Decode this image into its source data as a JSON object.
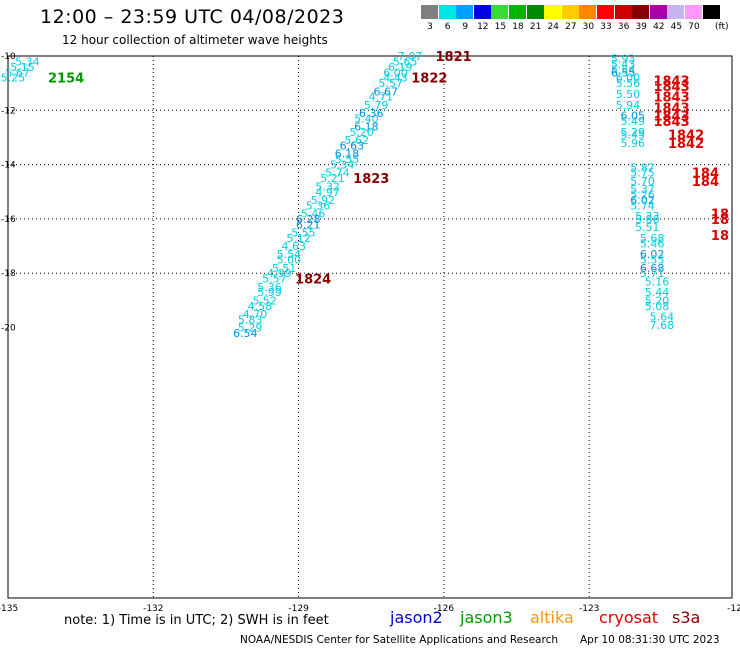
{
  "header": {
    "title": "12:00 – 23:59 UTC 04/08/2023",
    "subtitle": "12 hour collection of altimeter wave heights"
  },
  "colorbar": {
    "unit": "(ft)",
    "bins": [
      {
        "label": "3",
        "color": "#808080"
      },
      {
        "label": "6",
        "color": "#00e6e6"
      },
      {
        "label": "9",
        "color": "#00a0ff"
      },
      {
        "label": "12",
        "color": "#0000e6"
      },
      {
        "label": "15",
        "color": "#33dd33"
      },
      {
        "label": "18",
        "color": "#00b400"
      },
      {
        "label": "21",
        "color": "#008800"
      },
      {
        "label": "24",
        "color": "#ffff00"
      },
      {
        "label": "27",
        "color": "#ffcc00"
      },
      {
        "label": "30",
        "color": "#ff8800"
      },
      {
        "label": "33",
        "color": "#ff0000"
      },
      {
        "label": "36",
        "color": "#cc0000"
      },
      {
        "label": "39",
        "color": "#880000"
      },
      {
        "label": "42",
        "color": "#aa00aa"
      },
      {
        "label": "45",
        "color": "#c8b4f0"
      },
      {
        "label": "70",
        "color": "#ff99ff"
      },
      {
        "label": "",
        "color": "#000000"
      }
    ]
  },
  "axes": {
    "lon_ticks": [
      "-135",
      "-132",
      "-129",
      "-126",
      "-123",
      "-12"
    ],
    "lat_ticks": [
      "-10",
      "-12",
      "-14",
      "-16",
      "-18",
      "-20"
    ]
  },
  "tracks": [
    {
      "id": "left-edge",
      "points": [
        {
          "swh": "5.34",
          "lon": -134.6,
          "lat": -10.2,
          "color": "#00cfe0"
        },
        {
          "swh": "5.15",
          "lon": -134.7,
          "lat": -10.4,
          "color": "#00cfe0"
        },
        {
          "swh": "5.67",
          "lon": -134.8,
          "lat": -10.6,
          "color": "#00cfe0"
        },
        {
          "swh": "5.25",
          "lon": -134.9,
          "lat": -10.8,
          "color": "#00cfe0"
        }
      ],
      "times": [
        {
          "time": "2154",
          "lon": -133.8,
          "lat": -10.8,
          "color": "#009900"
        }
      ]
    },
    {
      "id": "center",
      "points": [
        {
          "swh": "7.07",
          "lon": -126.7,
          "lat": -10.0,
          "color": "#00cfe0"
        },
        {
          "swh": "5.65",
          "lon": -126.8,
          "lat": -10.2,
          "color": "#00cfe0"
        },
        {
          "swh": "6.19",
          "lon": -126.9,
          "lat": -10.4,
          "color": "#00cfe0"
        },
        {
          "swh": "6.00",
          "lon": -127.0,
          "lat": -10.6,
          "color": "#00cfe0"
        },
        {
          "swh": "4.43",
          "lon": -127.0,
          "lat": -10.8,
          "color": "#00cfe0"
        },
        {
          "swh": "5.57",
          "lon": -127.1,
          "lat": -11.0,
          "color": "#00cfe0"
        },
        {
          "swh": "6.67",
          "lon": -127.2,
          "lat": -11.3,
          "color": "#0090e0"
        },
        {
          "swh": "4.71",
          "lon": -127.3,
          "lat": -11.5,
          "color": "#00cfe0"
        },
        {
          "swh": "5.79",
          "lon": -127.4,
          "lat": -11.8,
          "color": "#00cfe0"
        },
        {
          "swh": "6.36",
          "lon": -127.5,
          "lat": -12.1,
          "color": "#0090e0"
        },
        {
          "swh": "5.40",
          "lon": -127.6,
          "lat": -12.3,
          "color": "#00cfe0"
        },
        {
          "swh": "6.18",
          "lon": -127.6,
          "lat": -12.6,
          "color": "#0090e0"
        },
        {
          "swh": "5.20",
          "lon": -127.7,
          "lat": -12.8,
          "color": "#00cfe0"
        },
        {
          "swh": "5.62",
          "lon": -127.8,
          "lat": -13.1,
          "color": "#00cfe0"
        },
        {
          "swh": "6.63",
          "lon": -127.9,
          "lat": -13.3,
          "color": "#0090e0"
        },
        {
          "swh": "6.18",
          "lon": -128.0,
          "lat": -13.6,
          "color": "#0090e0"
        },
        {
          "swh": "5.55",
          "lon": -128.0,
          "lat": -13.8,
          "color": "#00cfe0"
        },
        {
          "swh": "5.34",
          "lon": -128.1,
          "lat": -14.0,
          "color": "#00cfe0"
        },
        {
          "swh": "5.74",
          "lon": -128.2,
          "lat": -14.3,
          "color": "#00cfe0"
        },
        {
          "swh": "5.21",
          "lon": -128.3,
          "lat": -14.5,
          "color": "#00cfe0"
        },
        {
          "swh": "5.32",
          "lon": -128.4,
          "lat": -14.8,
          "color": "#00cfe0"
        },
        {
          "swh": "4.97",
          "lon": -128.4,
          "lat": -15.0,
          "color": "#00cfe0"
        },
        {
          "swh": "5.92",
          "lon": -128.5,
          "lat": -15.3,
          "color": "#00cfe0"
        },
        {
          "swh": "5.36",
          "lon": -128.6,
          "lat": -15.5,
          "color": "#00cfe0"
        },
        {
          "swh": "5.46",
          "lon": -128.7,
          "lat": -15.8,
          "color": "#00cfe0"
        },
        {
          "swh": "6.28",
          "lon": -128.8,
          "lat": -16.0,
          "color": "#0090e0"
        },
        {
          "swh": "6.21",
          "lon": -128.8,
          "lat": -16.2,
          "color": "#0090e0"
        },
        {
          "swh": "5.55",
          "lon": -128.9,
          "lat": -16.5,
          "color": "#00cfe0"
        },
        {
          "swh": "5.12",
          "lon": -129.0,
          "lat": -16.7,
          "color": "#00cfe0"
        },
        {
          "swh": "4.63",
          "lon": -129.1,
          "lat": -17.0,
          "color": "#00cfe0"
        },
        {
          "swh": "5.54",
          "lon": -129.2,
          "lat": -17.3,
          "color": "#00cfe0"
        },
        {
          "swh": "5.00",
          "lon": -129.2,
          "lat": -17.5,
          "color": "#00cfe0"
        },
        {
          "swh": "5.51",
          "lon": -129.3,
          "lat": -17.8,
          "color": "#00cfe0"
        },
        {
          "swh": "4.99",
          "lon": -129.4,
          "lat": -18.0,
          "color": "#00cfe0"
        },
        {
          "swh": "5.57",
          "lon": -129.5,
          "lat": -18.2,
          "color": "#00cfe0"
        },
        {
          "swh": "5.36",
          "lon": -129.6,
          "lat": -18.5,
          "color": "#00cfe0"
        },
        {
          "swh": "5.99",
          "lon": -129.6,
          "lat": -18.7,
          "color": "#00cfe0"
        },
        {
          "swh": "5.52",
          "lon": -129.7,
          "lat": -19.0,
          "color": "#00cfe0"
        },
        {
          "swh": "4.58",
          "lon": -129.8,
          "lat": -19.2,
          "color": "#00cfe0"
        },
        {
          "swh": "4.70",
          "lon": -129.9,
          "lat": -19.5,
          "color": "#00cfe0"
        },
        {
          "swh": "5.83",
          "lon": -130.0,
          "lat": -19.7,
          "color": "#00cfe0"
        },
        {
          "swh": "5.29",
          "lon": -130.0,
          "lat": -20.0,
          "color": "#00cfe0"
        },
        {
          "swh": "6.54",
          "lon": -130.1,
          "lat": -20.2,
          "color": "#0090e0"
        }
      ],
      "times": [
        {
          "time": "1821",
          "lon": -125.8,
          "lat": -10.0,
          "color": "#880000"
        },
        {
          "time": "1822",
          "lon": -126.3,
          "lat": -10.8,
          "color": "#880000"
        },
        {
          "time": "1823",
          "lon": -127.5,
          "lat": -14.5,
          "color": "#880000"
        },
        {
          "time": "1824",
          "lon": -128.7,
          "lat": -18.2,
          "color": "#880000"
        }
      ]
    },
    {
      "id": "right-upper",
      "points": [
        {
          "swh": "5.93",
          "lon": -122.3,
          "lat": -10.1,
          "color": "#00cfe0"
        },
        {
          "swh": "5.43",
          "lon": -122.3,
          "lat": -10.3,
          "color": "#00cfe0"
        },
        {
          "swh": "5.54",
          "lon": -122.3,
          "lat": -10.5,
          "color": "#00cfe0"
        },
        {
          "swh": "6.55",
          "lon": -122.3,
          "lat": -10.6,
          "color": "#0090e0"
        },
        {
          "swh": "6.00",
          "lon": -122.2,
          "lat": -10.8,
          "color": "#00cfe0"
        },
        {
          "swh": "5.56",
          "lon": -122.2,
          "lat": -11.0,
          "color": "#00cfe0"
        },
        {
          "swh": "5.50",
          "lon": -122.2,
          "lat": -11.4,
          "color": "#00cfe0"
        },
        {
          "swh": "5.94",
          "lon": -122.2,
          "lat": -11.8,
          "color": "#00cfe0"
        },
        {
          "swh": "6.05",
          "lon": -122.1,
          "lat": -12.2,
          "color": "#0090e0"
        },
        {
          "swh": "5.49",
          "lon": -122.1,
          "lat": -12.4,
          "color": "#00cfe0"
        },
        {
          "swh": "5.29",
          "lon": -122.1,
          "lat": -12.8,
          "color": "#00cfe0"
        },
        {
          "swh": "5.45",
          "lon": -122.1,
          "lat": -12.9,
          "color": "#00cfe0"
        },
        {
          "swh": "5.96",
          "lon": -122.1,
          "lat": -13.2,
          "color": "#00cfe0"
        }
      ],
      "times": [
        {
          "time": "1843",
          "lon": -121.3,
          "lat": -10.9,
          "color": "#dd0000"
        },
        {
          "time": "1843",
          "lon": -121.3,
          "lat": -11.1,
          "color": "#dd0000"
        },
        {
          "time": "1843",
          "lon": -121.3,
          "lat": -11.5,
          "color": "#dd0000"
        },
        {
          "time": "1843",
          "lon": -121.3,
          "lat": -11.9,
          "color": "#dd0000"
        },
        {
          "time": "1843",
          "lon": -121.3,
          "lat": -12.2,
          "color": "#dd0000"
        },
        {
          "time": "1843",
          "lon": -121.3,
          "lat": -12.4,
          "color": "#dd0000"
        },
        {
          "time": "1842",
          "lon": -121.0,
          "lat": -12.9,
          "color": "#dd0000"
        },
        {
          "time": "1842",
          "lon": -121.0,
          "lat": -13.2,
          "color": "#dd0000"
        }
      ]
    },
    {
      "id": "right-lower",
      "points": [
        {
          "swh": "5.87",
          "lon": -121.9,
          "lat": -14.1,
          "color": "#00cfe0"
        },
        {
          "swh": "5.75",
          "lon": -121.9,
          "lat": -14.3,
          "color": "#00cfe0"
        },
        {
          "swh": "5.70",
          "lon": -121.9,
          "lat": -14.6,
          "color": "#00cfe0"
        },
        {
          "swh": "5.37",
          "lon": -121.9,
          "lat": -14.9,
          "color": "#00cfe0"
        },
        {
          "swh": "5.26",
          "lon": -121.9,
          "lat": -15.1,
          "color": "#00cfe0"
        },
        {
          "swh": "6.02",
          "lon": -121.9,
          "lat": -15.3,
          "color": "#0090e0"
        },
        {
          "swh": "5.74",
          "lon": -121.9,
          "lat": -15.5,
          "color": "#00cfe0"
        },
        {
          "swh": "5.23",
          "lon": -121.8,
          "lat": -15.9,
          "color": "#00cfe0"
        },
        {
          "swh": "5.86",
          "lon": -121.8,
          "lat": -16.0,
          "color": "#00cfe0"
        },
        {
          "swh": "5.51",
          "lon": -121.8,
          "lat": -16.3,
          "color": "#00cfe0"
        },
        {
          "swh": "5.68",
          "lon": -121.7,
          "lat": -16.7,
          "color": "#00cfe0"
        },
        {
          "swh": "5.46",
          "lon": -121.7,
          "lat": -16.9,
          "color": "#00cfe0"
        },
        {
          "swh": "6.02",
          "lon": -121.7,
          "lat": -17.3,
          "color": "#0090e0"
        },
        {
          "swh": "5.55",
          "lon": -121.7,
          "lat": -17.5,
          "color": "#00cfe0"
        },
        {
          "swh": "6.68",
          "lon": -121.7,
          "lat": -17.8,
          "color": "#0090e0"
        },
        {
          "swh": "5.71",
          "lon": -121.7,
          "lat": -18.0,
          "color": "#00cfe0"
        },
        {
          "swh": "5.16",
          "lon": -121.6,
          "lat": -18.3,
          "color": "#00cfe0"
        },
        {
          "swh": "5.44",
          "lon": -121.6,
          "lat": -18.7,
          "color": "#00cfe0"
        },
        {
          "swh": "5.20",
          "lon": -121.6,
          "lat": -19.0,
          "color": "#00cfe0"
        },
        {
          "swh": "5.08",
          "lon": -121.6,
          "lat": -19.2,
          "color": "#00cfe0"
        },
        {
          "swh": "5.64",
          "lon": -121.5,
          "lat": -19.6,
          "color": "#00cfe0"
        },
        {
          "swh": "7.68",
          "lon": -121.5,
          "lat": -19.9,
          "color": "#00cfe0"
        }
      ],
      "times": [
        {
          "time": "184",
          "lon": -120.6,
          "lat": -14.3,
          "color": "#dd0000"
        },
        {
          "time": "184",
          "lon": -120.6,
          "lat": -14.6,
          "color": "#dd0000"
        },
        {
          "time": "18",
          "lon": -120.3,
          "lat": -15.8,
          "color": "#dd0000"
        },
        {
          "time": "18",
          "lon": -120.3,
          "lat": -16.0,
          "color": "#dd0000"
        },
        {
          "time": "18",
          "lon": -120.3,
          "lat": -16.6,
          "color": "#dd0000"
        }
      ]
    }
  ],
  "footer": {
    "note": "note:  1) Time is in UTC;  2) SWH is in feet",
    "satellites": [
      {
        "name": "jason2",
        "color": "#0000dd"
      },
      {
        "name": "jason3",
        "color": "#009900"
      },
      {
        "name": "altika",
        "color": "#ff9900"
      },
      {
        "name": "cryosat",
        "color": "#dd0000"
      },
      {
        "name": "s3a",
        "color": "#880000"
      }
    ],
    "credit": "NOAA/NESDIS Center for Satellite Applications and Research",
    "timestamp": "Apr 10 08:31:30 UTC 2023"
  }
}
